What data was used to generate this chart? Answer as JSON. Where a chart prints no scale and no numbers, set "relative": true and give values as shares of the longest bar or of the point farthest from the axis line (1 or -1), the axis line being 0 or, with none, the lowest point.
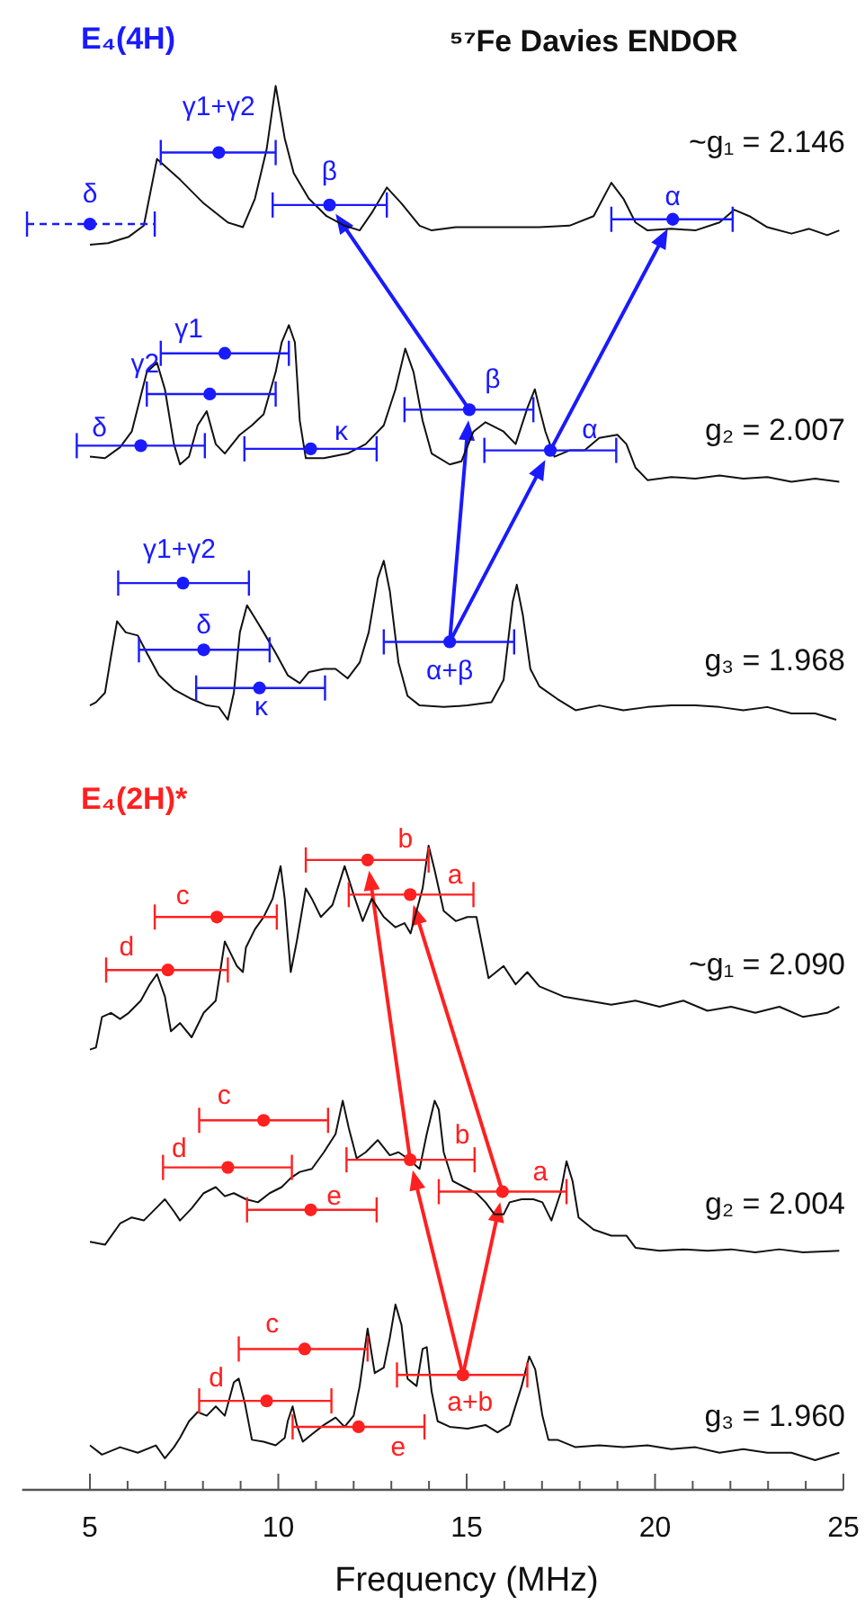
{
  "chart_data": [
    {
      "type": "line",
      "relative": true,
      "title": "⁵⁷Fe Davies ENDOR",
      "subtitle": "E₄(4H)",
      "xticks": [
        5,
        10,
        15,
        20,
        25
      ],
      "tick_labels": false,
      "annotations": [
        "~g₁ = 2.146"
      ],
      "series": [
        {
          "color": "#111111",
          "x": [
            5.0,
            5.48,
            6.03,
            6.43,
            6.78,
            7.39,
            8.02,
            8.66,
            9.06,
            9.38,
            9.69,
            9.93,
            10.17,
            10.41,
            10.81,
            11.28,
            11.76,
            12.16,
            12.48,
            12.88,
            13.27,
            13.75,
            14.07,
            14.71,
            15.34,
            16.14,
            16.93,
            17.73,
            18.37,
            18.84,
            19.16,
            19.48,
            19.8,
            20.43,
            21.07,
            21.71,
            22.1,
            22.5,
            22.98,
            23.62,
            24.09,
            24.57,
            24.89
          ],
          "values": [
            0,
            0.01,
            0.05,
            0.12,
            0.54,
            0.41,
            0.26,
            0.14,
            0.11,
            0.29,
            0.6,
            1,
            0.67,
            0.45,
            0.29,
            0.18,
            0.12,
            0.09,
            0.2,
            0.36,
            0.26,
            0.12,
            0.09,
            0.11,
            0.11,
            0.11,
            0.11,
            0.12,
            0.18,
            0.39,
            0.29,
            0.14,
            0.09,
            0.1,
            0.09,
            0.14,
            0.22,
            0.18,
            0.11,
            0.07,
            0.1,
            0.06,
            0.09
          ]
        },
        {
          "type": "scatter",
          "name": "γ1+γ2",
          "color": "#1a1aff",
          "marker": "circle",
          "x": [
            8.42
          ],
          "values": [
            0.58
          ],
          "xerrors": [
            [
              6.88,
              9.93
            ]
          ]
        },
        {
          "type": "scatter",
          "name": "β",
          "color": "#1a1aff",
          "marker": "circle",
          "x": [
            11.36
          ],
          "values": [
            0.25
          ],
          "xerrors": [
            [
              9.85,
              12.88
            ]
          ]
        },
        {
          "type": "scatter",
          "name": "α",
          "color": "#1a1aff",
          "marker": "circle",
          "x": [
            20.47
          ],
          "values": [
            0.16
          ],
          "xerrors": [
            [
              18.84,
              22.06
            ]
          ]
        },
        {
          "type": "scatter",
          "name": "δ",
          "color": "#1a1aff",
          "marker": "circle",
          "line_style": "dashed",
          "x": [
            5.0
          ],
          "values": [
            0.13
          ],
          "xerrors": [
            [
              3.33,
              6.72
            ]
          ]
        }
      ]
    },
    {
      "type": "line",
      "relative": true,
      "xticks": [
        5,
        10,
        15,
        20,
        25
      ],
      "tick_labels": false,
      "annotations": [
        "g₂ = 2.007"
      ],
      "series": [
        {
          "color": "#111111",
          "x": [
            5.0,
            5.4,
            5.8,
            6.11,
            6.51,
            6.78,
            6.99,
            7.23,
            7.39,
            7.63,
            7.86,
            8.1,
            8.34,
            8.58,
            8.98,
            9.3,
            9.61,
            9.93,
            10.09,
            10.28,
            10.44,
            10.57,
            10.73,
            11.21,
            11.84,
            12.32,
            12.8,
            13.11,
            13.37,
            13.59,
            13.83,
            14.07,
            14.55,
            14.86,
            15.18,
            15.5,
            15.98,
            16.3,
            16.61,
            16.81,
            16.93,
            17.09,
            17.33,
            17.73,
            18.13,
            18.52,
            19.0,
            19.24,
            19.48,
            19.8,
            20.43,
            21.07,
            21.71,
            22.34,
            22.98,
            23.62,
            24.25,
            24.89
          ],
          "values": [
            0.16,
            0.15,
            0.22,
            0.32,
            0.7,
            0.76,
            0.59,
            0.24,
            0.11,
            0.16,
            0.36,
            0.45,
            0.24,
            0.18,
            0.3,
            0.36,
            0.43,
            0.7,
            0.89,
            1,
            0.89,
            0.39,
            0.15,
            0.15,
            0.18,
            0.24,
            0.36,
            0.59,
            0.85,
            0.7,
            0.39,
            0.18,
            0.11,
            0.13,
            0.32,
            0.38,
            0.32,
            0.24,
            0.47,
            0.59,
            0.47,
            0.32,
            0.16,
            0.2,
            0.2,
            0.28,
            0.3,
            0.24,
            0.09,
            0.01,
            0.03,
            0.02,
            0.04,
            0.02,
            0.03,
            0,
            0.02,
            0
          ]
        },
        {
          "type": "scatter",
          "name": "γ1",
          "color": "#1a1aff",
          "marker": "circle",
          "x": [
            8.58
          ],
          "values": [
            0.82
          ],
          "xerrors": [
            [
              6.88,
              10.28
            ]
          ]
        },
        {
          "type": "scatter",
          "name": "γ2",
          "color": "#1a1aff",
          "marker": "circle",
          "x": [
            8.18
          ],
          "values": [
            0.56
          ],
          "xerrors": [
            [
              6.51,
              9.93
            ]
          ]
        },
        {
          "type": "scatter",
          "name": "δ",
          "color": "#1a1aff",
          "marker": "circle",
          "x": [
            6.35
          ],
          "values": [
            0.23
          ],
          "xerrors": [
            [
              4.65,
              8.05
            ]
          ]
        },
        {
          "type": "scatter",
          "name": "κ",
          "color": "#1a1aff",
          "marker": "circle",
          "x": [
            10.86
          ],
          "values": [
            0.21
          ],
          "xerrors": [
            [
              9.1,
              12.61
            ]
          ]
        },
        {
          "type": "scatter",
          "name": "β",
          "color": "#1a1aff",
          "marker": "circle",
          "x": [
            15.07
          ],
          "values": [
            0.46
          ],
          "xerrors": [
            [
              13.35,
              16.77
            ]
          ]
        },
        {
          "type": "scatter",
          "name": "α",
          "color": "#1a1aff",
          "marker": "circle",
          "x": [
            17.22
          ],
          "values": [
            0.2
          ],
          "xerrors": [
            [
              15.47,
              18.97
            ]
          ]
        }
      ]
    },
    {
      "type": "line",
      "relative": true,
      "xticks": [
        5,
        10,
        15,
        20,
        25
      ],
      "tick_labels": false,
      "annotations": [
        "g₃ = 1.968"
      ],
      "series": [
        {
          "color": "#111111",
          "x": [
            5.0,
            5.16,
            5.4,
            5.56,
            5.72,
            5.95,
            6.27,
            6.51,
            6.83,
            7.23,
            7.7,
            8.1,
            8.42,
            8.66,
            8.82,
            8.98,
            9.17,
            9.38,
            9.61,
            9.93,
            10.25,
            10.57,
            10.81,
            11.21,
            11.52,
            11.84,
            12.16,
            12.4,
            12.64,
            12.8,
            12.96,
            13.19,
            13.43,
            13.75,
            14.39,
            15.02,
            15.66,
            15.98,
            16.22,
            16.33,
            16.49,
            16.69,
            16.93,
            17.41,
            17.89,
            18.52,
            19.16,
            19.8,
            20.43,
            21.07,
            21.71,
            22.34,
            22.98,
            23.62,
            24.25,
            24.81
          ],
          "values": [
            0.09,
            0.11,
            0.17,
            0.4,
            0.62,
            0.55,
            0.53,
            0.42,
            0.28,
            0.19,
            0.13,
            0.09,
            0.08,
            0,
            0.17,
            0.55,
            0.72,
            0.64,
            0.55,
            0.42,
            0.28,
            0.23,
            0.3,
            0.32,
            0.32,
            0.26,
            0.36,
            0.55,
            0.89,
            1,
            0.81,
            0.36,
            0.15,
            0.09,
            0.08,
            0.09,
            0.11,
            0.25,
            0.74,
            0.85,
            0.66,
            0.32,
            0.21,
            0.13,
            0.06,
            0.09,
            0.06,
            0.08,
            0.09,
            0.09,
            0.08,
            0.06,
            0.08,
            0.04,
            0.04,
            0
          ]
        },
        {
          "type": "scatter",
          "name": "γ1+γ2",
          "color": "#1a1aff",
          "marker": "circle",
          "x": [
            7.47
          ],
          "values": [
            0.86
          ],
          "xerrors": [
            [
              5.75,
              9.22
            ]
          ]
        },
        {
          "type": "scatter",
          "name": "δ",
          "color": "#1a1aff",
          "marker": "circle",
          "x": [
            8.02
          ],
          "values": [
            0.44
          ],
          "xerrors": [
            [
              6.3,
              9.77
            ]
          ]
        },
        {
          "type": "scatter",
          "name": "κ",
          "color": "#1a1aff",
          "marker": "circle",
          "x": [
            9.5
          ],
          "values": [
            0.2
          ],
          "xerrors": [
            [
              7.82,
              11.24
            ]
          ]
        },
        {
          "type": "scatter",
          "name": "α+β",
          "color": "#1a1aff",
          "marker": "circle",
          "x": [
            14.55
          ],
          "values": [
            0.49
          ],
          "xerrors": [
            [
              12.8,
              16.26
            ]
          ]
        }
      ]
    },
    {
      "type": "line",
      "relative": true,
      "subtitle": "E₄(2H)*",
      "xticks": [
        5,
        10,
        15,
        20,
        25
      ],
      "tick_labels": false,
      "annotations": [
        "~g₁ = 2.090"
      ],
      "series": [
        {
          "color": "#111111",
          "x": [
            5.0,
            5.16,
            5.32,
            5.56,
            5.8,
            6.03,
            6.35,
            6.59,
            6.78,
            6.99,
            7.15,
            7.39,
            7.7,
            8.02,
            8.34,
            8.58,
            8.74,
            8.9,
            9.06,
            9.14,
            9.38,
            9.61,
            9.85,
            10.06,
            10.17,
            10.33,
            10.49,
            10.73,
            10.89,
            11.13,
            11.44,
            11.76,
            12.0,
            12.24,
            12.48,
            12.8,
            13.11,
            13.35,
            13.51,
            13.67,
            13.83,
            13.99,
            14.15,
            14.39,
            14.71,
            15.02,
            15.26,
            15.42,
            15.58,
            15.98,
            16.3,
            16.61,
            16.93,
            17.57,
            18.21,
            18.84,
            19.48,
            20.12,
            20.75,
            21.39,
            22.02,
            22.66,
            23.3,
            23.93,
            24.57,
            24.89
          ],
          "values": [
            0,
            0.01,
            0.16,
            0.18,
            0.15,
            0.18,
            0.24,
            0.32,
            0.37,
            0.26,
            0.09,
            0.13,
            0.06,
            0.18,
            0.24,
            0.53,
            0.47,
            0.41,
            0.38,
            0.5,
            0.59,
            0.65,
            0.74,
            0.9,
            0.74,
            0.38,
            0.53,
            0.79,
            0.74,
            0.65,
            0.71,
            0.9,
            0.76,
            0.63,
            0.74,
            0.65,
            0.6,
            0.62,
            0.57,
            0.68,
            0.79,
            1,
            0.88,
            0.68,
            0.63,
            0.65,
            0.65,
            0.5,
            0.35,
            0.41,
            0.32,
            0.38,
            0.31,
            0.26,
            0.24,
            0.22,
            0.24,
            0.21,
            0.24,
            0.19,
            0.21,
            0.18,
            0.21,
            0.16,
            0.18,
            0.21
          ]
        },
        {
          "type": "scatter",
          "name": "b",
          "color": "#ff2020",
          "marker": "circle",
          "x": [
            12.37
          ],
          "values": [
            0.93
          ],
          "xerrors": [
            [
              10.73,
              13.99
            ]
          ]
        },
        {
          "type": "scatter",
          "name": "a",
          "color": "#ff2020",
          "marker": "circle",
          "x": [
            13.5
          ],
          "values": [
            0.76
          ],
          "xerrors": [
            [
              11.87,
              15.18
            ]
          ]
        },
        {
          "type": "scatter",
          "name": "c",
          "color": "#ff2020",
          "marker": "circle",
          "x": [
            8.37
          ],
          "values": [
            0.65
          ],
          "xerrors": [
            [
              6.72,
              9.96
            ]
          ]
        },
        {
          "type": "scatter",
          "name": "d",
          "color": "#ff2020",
          "marker": "circle",
          "x": [
            7.07
          ],
          "values": [
            0.39
          ],
          "xerrors": [
            [
              5.43,
              8.66
            ]
          ]
        }
      ]
    },
    {
      "type": "line",
      "relative": true,
      "xticks": [
        5,
        10,
        15,
        20,
        25
      ],
      "tick_labels": false,
      "annotations": [
        "g₂ = 2.004"
      ],
      "series": [
        {
          "color": "#111111",
          "x": [
            5.0,
            5.4,
            5.8,
            6.11,
            6.43,
            6.75,
            6.99,
            7.23,
            7.39,
            7.7,
            8.02,
            8.34,
            8.58,
            8.82,
            9.14,
            9.46,
            9.77,
            10.09,
            10.33,
            10.57,
            10.89,
            11.21,
            11.52,
            11.71,
            11.87,
            12.08,
            12.32,
            12.64,
            12.96,
            13.19,
            13.43,
            13.75,
            13.94,
            14.15,
            14.26,
            14.39,
            14.63,
            14.94,
            15.26,
            15.5,
            15.74,
            15.98,
            16.14,
            16.46,
            16.77,
            17.01,
            17.25,
            17.49,
            17.65,
            17.81,
            17.97,
            18.37,
            18.84,
            19.24,
            19.48,
            20.12,
            20.75,
            21.39,
            22.02,
            22.66,
            23.3,
            23.93,
            24.89
          ],
          "values": [
            0.07,
            0.05,
            0.19,
            0.23,
            0.21,
            0.29,
            0.35,
            0.27,
            0.21,
            0.29,
            0.39,
            0.43,
            0.37,
            0.39,
            0.35,
            0.33,
            0.39,
            0.43,
            0.49,
            0.53,
            0.55,
            0.66,
            0.78,
            1,
            0.82,
            0.62,
            0.66,
            0.74,
            0.64,
            0.66,
            0.62,
            0.55,
            0.78,
            1,
            0.94,
            0.66,
            0.47,
            0.43,
            0.39,
            0.33,
            0.25,
            0.25,
            0.33,
            0.35,
            0.35,
            0.33,
            0.21,
            0.39,
            0.6,
            0.47,
            0.23,
            0.15,
            0.11,
            0.11,
            0.03,
            0.01,
            0.02,
            0.01,
            0.02,
            0,
            0.02,
            0,
            0.01
          ]
        },
        {
          "type": "scatter",
          "name": "c",
          "color": "#ff2020",
          "marker": "circle",
          "x": [
            9.61
          ],
          "values": [
            0.87
          ],
          "xerrors": [
            [
              7.9,
              11.32
            ]
          ]
        },
        {
          "type": "scatter",
          "name": "d",
          "color": "#ff2020",
          "marker": "circle",
          "x": [
            8.66
          ],
          "values": [
            0.56
          ],
          "xerrors": [
            [
              6.94,
              10.36
            ]
          ]
        },
        {
          "type": "scatter",
          "name": "b",
          "color": "#ff2020",
          "marker": "circle",
          "x": [
            13.5
          ],
          "values": [
            0.61
          ],
          "xerrors": [
            [
              11.81,
              15.21
            ]
          ]
        },
        {
          "type": "scatter",
          "name": "a",
          "color": "#ff2020",
          "marker": "circle",
          "x": [
            15.95
          ],
          "values": [
            0.4
          ],
          "xerrors": [
            [
              14.26,
              17.65
            ]
          ]
        },
        {
          "type": "scatter",
          "name": "e",
          "color": "#ff2020",
          "marker": "circle",
          "x": [
            10.86
          ],
          "values": [
            0.28
          ],
          "xerrors": [
            [
              9.17,
              12.61
            ]
          ]
        }
      ]
    },
    {
      "type": "line",
      "relative": true,
      "xlabel": "Frequency (MHz)",
      "xlim": [
        3.2,
        25
      ],
      "tick_labels": "x",
      "xticks": [
        5,
        {
          "value": 6,
          "label": null
        },
        {
          "value": 7,
          "label": null
        },
        {
          "value": 8,
          "label": null
        },
        {
          "value": 9,
          "label": null
        },
        10,
        {
          "value": 11,
          "label": null
        },
        {
          "value": 12,
          "label": null
        },
        {
          "value": 13,
          "label": null
        },
        {
          "value": 14,
          "label": null
        },
        15,
        {
          "value": 16,
          "label": null
        },
        {
          "value": 17,
          "label": null
        },
        {
          "value": 18,
          "label": null
        },
        {
          "value": 19,
          "label": null
        },
        20,
        {
          "value": 21,
          "label": null
        },
        {
          "value": 22,
          "label": null
        },
        {
          "value": 23,
          "label": null
        },
        {
          "value": 24,
          "label": null
        },
        25
      ],
      "annotations": [
        "g₃ = 1.960"
      ],
      "series": [
        {
          "color": "#111111",
          "x": [
            5.0,
            5.32,
            5.8,
            6.27,
            6.75,
            6.99,
            7.23,
            7.39,
            7.63,
            7.86,
            8.1,
            8.34,
            8.58,
            8.82,
            8.95,
            9.11,
            9.3,
            9.61,
            9.93,
            10.17,
            10.25,
            10.38,
            10.49,
            10.65,
            10.89,
            11.21,
            11.52,
            11.76,
            12.0,
            12.16,
            12.37,
            12.56,
            12.8,
            12.96,
            13.11,
            13.27,
            13.43,
            13.67,
            13.83,
            13.94,
            14.07,
            14.23,
            14.55,
            15.02,
            15.5,
            15.82,
            16.14,
            16.46,
            16.66,
            16.82,
            17.01,
            17.17,
            17.41,
            17.89,
            18.52,
            19.16,
            19.8,
            20.43,
            21.07,
            21.71,
            22.34,
            22.98,
            23.62,
            24.25,
            24.89
          ],
          "values": [
            0.24,
            0.19,
            0.23,
            0.2,
            0.24,
            0.17,
            0.23,
            0.28,
            0.37,
            0.42,
            0.4,
            0.45,
            0.4,
            0.58,
            0.6,
            0.47,
            0.27,
            0.26,
            0.24,
            0.28,
            0.37,
            0.45,
            0.35,
            0.26,
            0.3,
            0.35,
            0.39,
            0.34,
            0.4,
            0.56,
            0.87,
            0.63,
            0.66,
            0.82,
            1,
            0.89,
            0.6,
            0.56,
            0.76,
            0.77,
            0.53,
            0.37,
            0.34,
            0.33,
            0.35,
            0.31,
            0.35,
            0.56,
            0.72,
            0.65,
            0.4,
            0.27,
            0.27,
            0.23,
            0.24,
            0.23,
            0.24,
            0.22,
            0.23,
            0.2,
            0.22,
            0.2,
            0.2,
            0.16,
            0.2
          ]
        },
        {
          "type": "scatter",
          "name": "c",
          "color": "#ff2020",
          "marker": "circle",
          "x": [
            10.7
          ],
          "values": [
            0.76
          ],
          "xerrors": [
            [
              8.95,
              12.37
            ]
          ]
        },
        {
          "type": "scatter",
          "name": "a+b",
          "color": "#ff2020",
          "marker": "circle",
          "x": [
            14.9
          ],
          "values": [
            0.62
          ],
          "xerrors": [
            [
              13.15,
              16.61
            ]
          ]
        },
        {
          "type": "scatter",
          "name": "d",
          "color": "#ff2020",
          "marker": "circle",
          "x": [
            9.69
          ],
          "values": [
            0.48
          ],
          "xerrors": [
            [
              7.9,
              11.41
            ]
          ]
        },
        {
          "type": "scatter",
          "name": "e",
          "color": "#ff2020",
          "marker": "circle",
          "x": [
            12.13
          ],
          "values": [
            0.34
          ],
          "xerrors": [
            [
              10.38,
              13.88
            ]
          ]
        }
      ]
    }
  ]
}
